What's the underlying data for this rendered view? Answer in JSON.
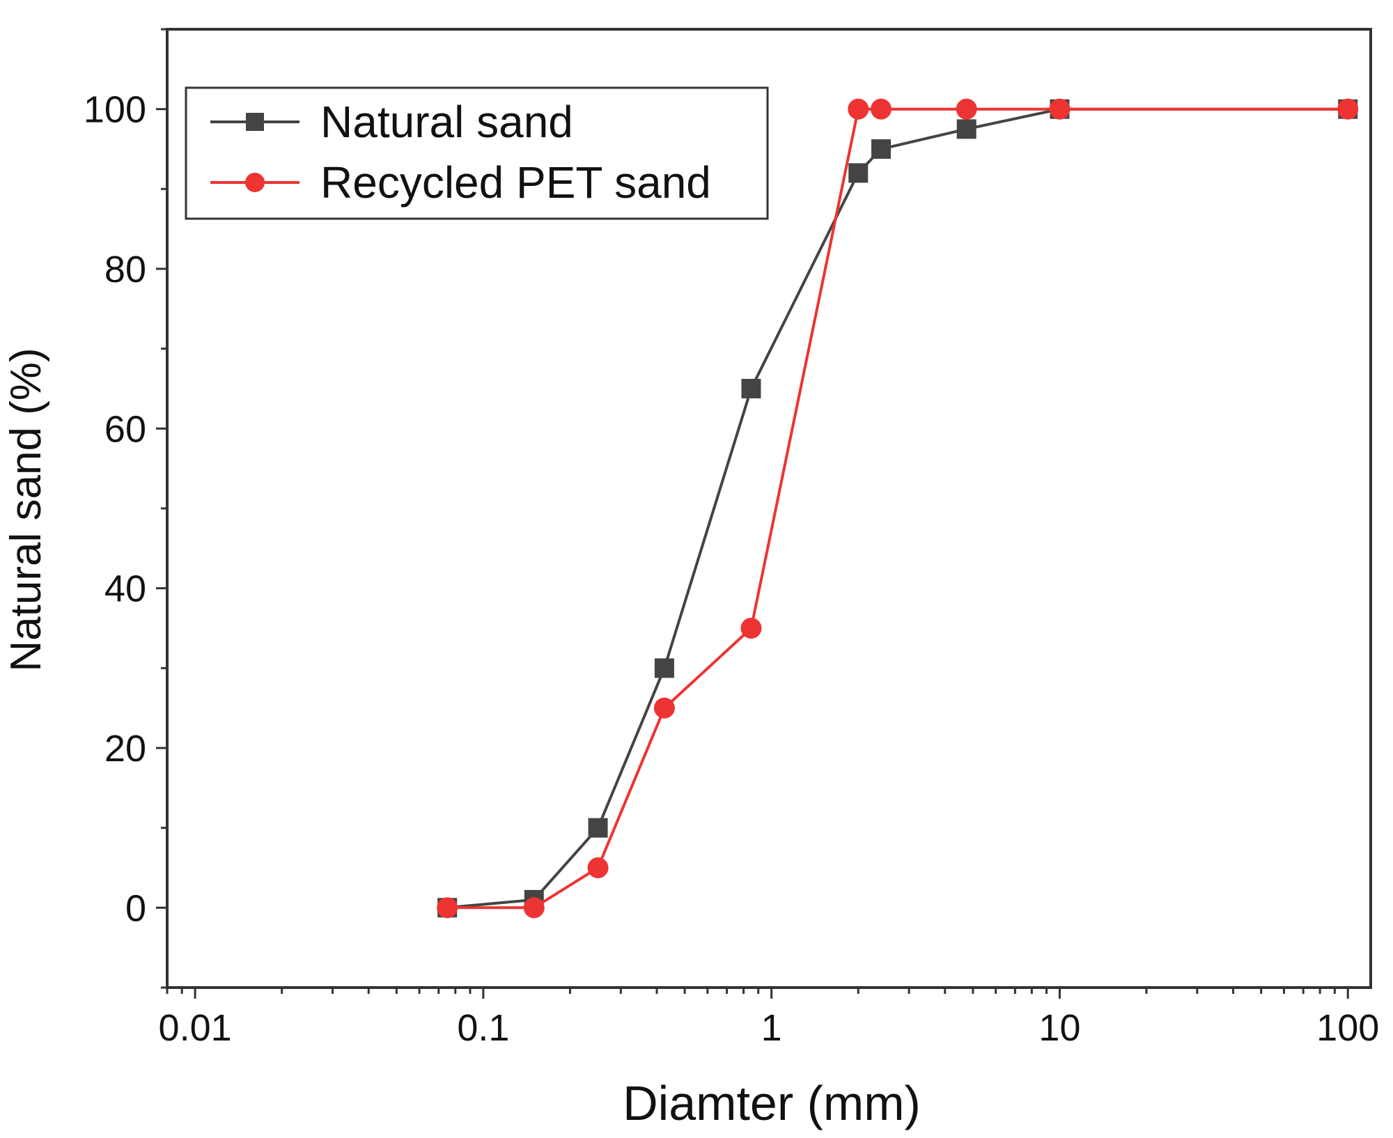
{
  "chart_data": {
    "type": "line",
    "xscale": "log",
    "xlabel": "Diamter (mm)",
    "ylabel": "Natural sand (%)",
    "xlim": [
      0.008,
      120
    ],
    "ylim": [
      -10,
      110
    ],
    "xticks": [
      0.01,
      0.1,
      1,
      10,
      100
    ],
    "xtick_labels": [
      "0.01",
      "0.1",
      "1",
      "10",
      "100"
    ],
    "yticks": [
      0,
      20,
      40,
      60,
      80,
      100
    ],
    "ytick_labels": [
      "0",
      "20",
      "40",
      "60",
      "80",
      "100"
    ],
    "grid": false,
    "legend_position": "top-left",
    "series": [
      {
        "name": "Natural sand",
        "color": "#444444",
        "marker": "square",
        "x": [
          0.075,
          0.15,
          0.25,
          0.425,
          0.85,
          2,
          2.4,
          4.75,
          10,
          100
        ],
        "y": [
          0,
          1,
          10,
          30,
          65,
          92,
          95,
          97.5,
          100,
          100
        ]
      },
      {
        "name": "Recycled PET sand",
        "color": "#ee3333",
        "marker": "circle",
        "x": [
          0.075,
          0.15,
          0.25,
          0.425,
          0.85,
          2,
          2.4,
          4.75,
          10,
          100
        ],
        "y": [
          0,
          0,
          5,
          25,
          35,
          100,
          100,
          100,
          100,
          100
        ]
      }
    ]
  }
}
